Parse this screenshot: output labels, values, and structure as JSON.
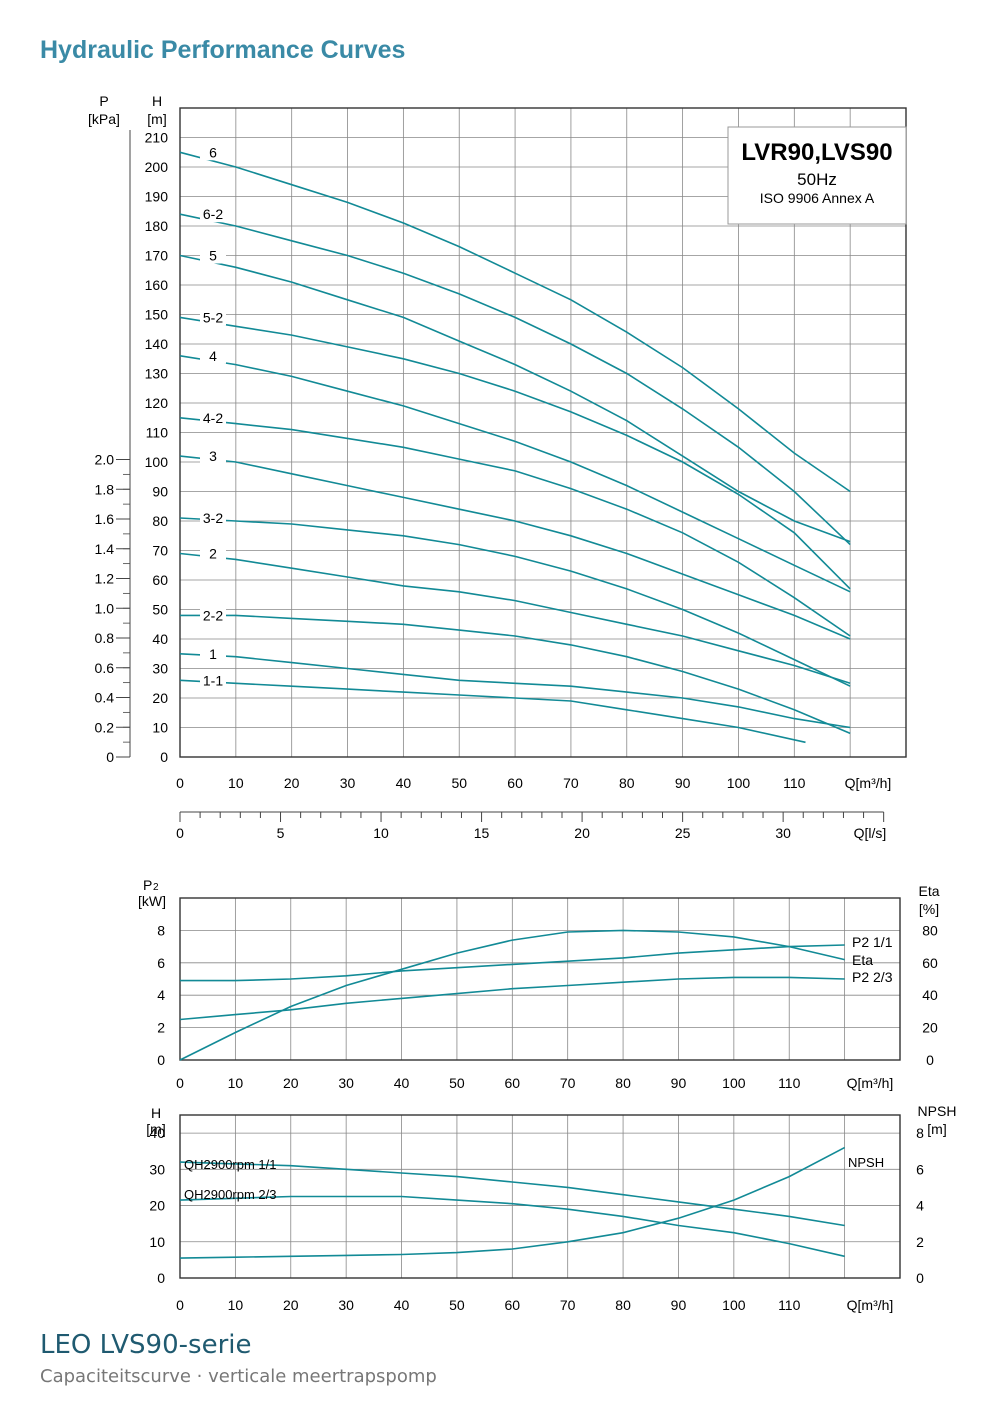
{
  "page": {
    "title": "Hydraulic Performance Curves",
    "footer_title": "LEO LVS90-serie",
    "footer_subtitle": "Capaciteitscurve · verticale meertrapspomp"
  },
  "colors": {
    "curve": "#128a96",
    "title": "#3a8aa6",
    "grid": "#888888",
    "axis": "#444444"
  },
  "chart_data": [
    {
      "type": "line",
      "title": "",
      "box": {
        "model": "LVR90,LVS90",
        "freq": "50Hz",
        "standard": "ISO 9906 Annex A"
      },
      "xlabel": "Q[m³/h]",
      "x2label": "Q[l/s]",
      "ylabel": "H [m]",
      "y2label": "P [kPa]",
      "xlim": [
        0,
        130
      ],
      "ylim": [
        0,
        220
      ],
      "x_ticks": [
        0,
        10,
        20,
        30,
        40,
        50,
        60,
        70,
        80,
        90,
        100,
        110
      ],
      "y_ticks": [
        0,
        10,
        20,
        30,
        40,
        50,
        60,
        70,
        80,
        90,
        100,
        110,
        120,
        130,
        140,
        150,
        160,
        170,
        180,
        190,
        200,
        210
      ],
      "x2_ticks": [
        0,
        5,
        10,
        15,
        20,
        25,
        30
      ],
      "y2_ticks": [
        "0",
        "0.2",
        "0.4",
        "0.6",
        "0.8",
        "1.0",
        "1.2",
        "1.4",
        "1.6",
        "1.8",
        "2.0"
      ],
      "series": [
        {
          "name": "6",
          "x": [
            0,
            10,
            20,
            30,
            40,
            50,
            60,
            70,
            80,
            90,
            100,
            110,
            120
          ],
          "y": [
            205,
            200,
            194,
            188,
            181,
            173,
            164,
            155,
            144,
            132,
            118,
            103,
            90
          ]
        },
        {
          "name": "6-2",
          "x": [
            0,
            10,
            20,
            30,
            40,
            50,
            60,
            70,
            80,
            90,
            100,
            110,
            120
          ],
          "y": [
            184,
            180,
            175,
            170,
            164,
            157,
            149,
            140,
            130,
            118,
            105,
            90,
            72
          ]
        },
        {
          "name": "5",
          "x": [
            0,
            10,
            20,
            30,
            40,
            50,
            60,
            70,
            80,
            90,
            100,
            110,
            120
          ],
          "y": [
            170,
            166,
            161,
            155,
            149,
            141,
            133,
            124,
            114,
            102,
            90,
            80,
            73
          ]
        },
        {
          "name": "5-2",
          "x": [
            0,
            10,
            20,
            30,
            40,
            50,
            60,
            70,
            80,
            90,
            100,
            110,
            120
          ],
          "y": [
            149,
            146,
            143,
            139,
            135,
            130,
            124,
            117,
            109,
            100,
            89,
            76,
            57
          ]
        },
        {
          "name": "4",
          "x": [
            0,
            10,
            20,
            30,
            40,
            50,
            60,
            70,
            80,
            90,
            100,
            110,
            120
          ],
          "y": [
            136,
            133,
            129,
            124,
            119,
            113,
            107,
            100,
            92,
            83,
            74,
            65,
            56
          ]
        },
        {
          "name": "4-2",
          "x": [
            0,
            10,
            20,
            30,
            40,
            50,
            60,
            70,
            80,
            90,
            100,
            110,
            120
          ],
          "y": [
            115,
            113,
            111,
            108,
            105,
            101,
            97,
            91,
            84,
            76,
            66,
            54,
            41
          ]
        },
        {
          "name": "3",
          "x": [
            0,
            10,
            20,
            30,
            40,
            50,
            60,
            70,
            80,
            90,
            100,
            110,
            120
          ],
          "y": [
            102,
            100,
            96,
            92,
            88,
            84,
            80,
            75,
            69,
            62,
            55,
            48,
            40
          ]
        },
        {
          "name": "3-2",
          "x": [
            0,
            10,
            20,
            30,
            40,
            50,
            60,
            70,
            80,
            90,
            100,
            110,
            120
          ],
          "y": [
            81,
            80,
            79,
            77,
            75,
            72,
            68,
            63,
            57,
            50,
            42,
            33,
            24
          ]
        },
        {
          "name": "2",
          "x": [
            0,
            10,
            20,
            30,
            40,
            50,
            60,
            70,
            80,
            90,
            100,
            110,
            120
          ],
          "y": [
            69,
            67,
            64,
            61,
            58,
            56,
            53,
            49,
            45,
            41,
            36,
            31,
            25
          ]
        },
        {
          "name": "2-2",
          "x": [
            0,
            10,
            20,
            30,
            40,
            50,
            60,
            70,
            80,
            90,
            100,
            110,
            120
          ],
          "y": [
            48,
            48,
            47,
            46,
            45,
            43,
            41,
            38,
            34,
            29,
            23,
            16,
            8
          ]
        },
        {
          "name": "1",
          "x": [
            0,
            10,
            20,
            30,
            40,
            50,
            60,
            70,
            80,
            90,
            100,
            110,
            120
          ],
          "y": [
            35,
            34,
            32,
            30,
            28,
            26,
            25,
            24,
            22,
            20,
            17,
            13,
            10
          ]
        },
        {
          "name": "1-1",
          "x": [
            0,
            10,
            20,
            30,
            40,
            50,
            60,
            70,
            80,
            90,
            100,
            112
          ],
          "y": [
            26,
            25,
            24,
            23,
            22,
            21,
            20,
            19,
            16,
            13,
            10,
            5
          ]
        }
      ]
    },
    {
      "type": "line",
      "xlabel": "Q[m³/h]",
      "ylabel": "P2 [kW]",
      "y2label": "Eta [%]",
      "xlim": [
        0,
        130
      ],
      "ylim": [
        0,
        10
      ],
      "y2lim": [
        0,
        100
      ],
      "x_ticks": [
        0,
        10,
        20,
        30,
        40,
        50,
        60,
        70,
        80,
        90,
        100,
        110
      ],
      "y_ticks": [
        0,
        2,
        4,
        6,
        8
      ],
      "y2_ticks": [
        0,
        20,
        40,
        60,
        80
      ],
      "series": [
        {
          "name": "P2 1/1",
          "axis": "left",
          "x": [
            0,
            10,
            20,
            30,
            40,
            50,
            60,
            70,
            80,
            90,
            100,
            110,
            120
          ],
          "y": [
            4.9,
            4.9,
            5.0,
            5.2,
            5.5,
            5.7,
            5.9,
            6.1,
            6.3,
            6.6,
            6.8,
            7.0,
            7.1
          ]
        },
        {
          "name": "Eta",
          "axis": "right",
          "x": [
            0,
            10,
            20,
            30,
            40,
            50,
            60,
            70,
            80,
            90,
            100,
            110,
            120
          ],
          "y": [
            0,
            17,
            33,
            46,
            56,
            66,
            74,
            79,
            80,
            79,
            76,
            70,
            62
          ]
        },
        {
          "name": "P2 2/3",
          "axis": "left",
          "x": [
            0,
            10,
            20,
            30,
            40,
            50,
            60,
            70,
            80,
            90,
            100,
            110,
            120
          ],
          "y": [
            2.5,
            2.8,
            3.1,
            3.5,
            3.8,
            4.1,
            4.4,
            4.6,
            4.8,
            5.0,
            5.1,
            5.1,
            5.0
          ]
        }
      ]
    },
    {
      "type": "line",
      "xlabel": "Q[m³/h]",
      "ylabel": "H [m]",
      "y2label": "NPSH [m]",
      "xlim": [
        0,
        130
      ],
      "ylim": [
        0,
        45
      ],
      "y2lim": [
        0,
        9
      ],
      "x_ticks": [
        0,
        10,
        20,
        30,
        40,
        50,
        60,
        70,
        80,
        90,
        100,
        110
      ],
      "y_ticks": [
        0,
        10,
        20,
        30,
        40
      ],
      "y2_ticks": [
        0,
        2,
        4,
        6,
        8
      ],
      "series": [
        {
          "name": "QH2900rpm 1/1",
          "axis": "left",
          "x": [
            0,
            10,
            20,
            30,
            40,
            50,
            60,
            70,
            80,
            90,
            100,
            110,
            120
          ],
          "y": [
            32,
            31.5,
            31,
            30,
            29,
            28,
            26.5,
            25,
            23,
            21,
            19,
            17,
            14.5
          ]
        },
        {
          "name": "QH2900rpm 2/3",
          "axis": "left",
          "x": [
            0,
            10,
            20,
            30,
            40,
            50,
            60,
            70,
            80,
            90,
            100,
            110,
            120
          ],
          "y": [
            21.5,
            22,
            22.5,
            22.5,
            22.5,
            21.5,
            20.5,
            19,
            17,
            14.5,
            12.5,
            9.5,
            6
          ]
        },
        {
          "name": "NPSH",
          "axis": "right",
          "x": [
            0,
            10,
            20,
            30,
            40,
            50,
            60,
            70,
            80,
            90,
            100,
            110,
            120
          ],
          "y": [
            1.1,
            1.15,
            1.2,
            1.25,
            1.3,
            1.4,
            1.6,
            2.0,
            2.5,
            3.3,
            4.3,
            5.6,
            7.2
          ]
        }
      ]
    }
  ]
}
